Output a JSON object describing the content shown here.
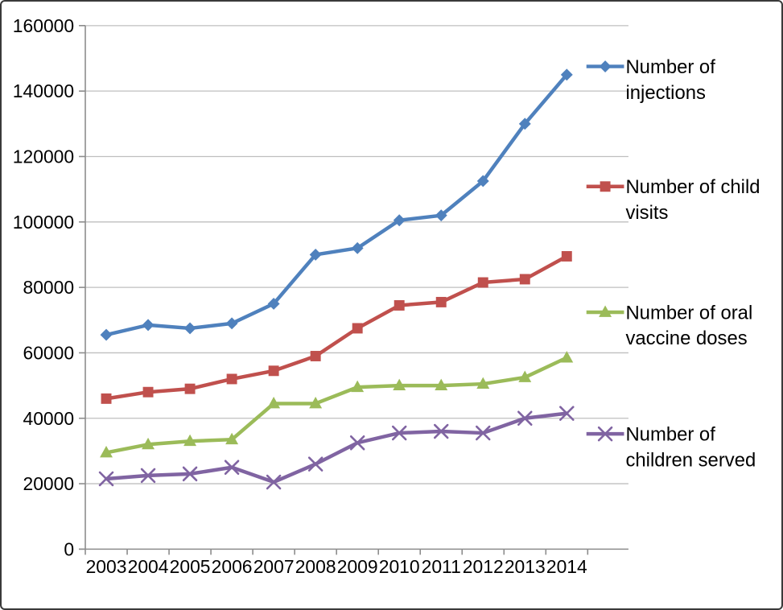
{
  "chart_data": {
    "type": "line",
    "title": "",
    "grid": "horizontal",
    "legend_position": "right",
    "x_categories": [
      "2003",
      "2004",
      "2005",
      "2006",
      "2007",
      "2008",
      "2009",
      "2010",
      "2011",
      "2012",
      "2013",
      "2014"
    ],
    "y_ticks": [
      "0",
      "20000",
      "40000",
      "60000",
      "80000",
      "100000",
      "120000",
      "140000",
      "160000"
    ],
    "ylim": [
      0,
      160000
    ],
    "ytick_step": 20000,
    "series": [
      {
        "name": "Number of injections",
        "legend_lines": [
          "Number of",
          "injections"
        ],
        "marker": "diamond",
        "color": "#4F81BD",
        "values": [
          65500,
          68500,
          67500,
          69000,
          75000,
          90000,
          92000,
          100500,
          102000,
          112500,
          130000,
          145000
        ]
      },
      {
        "name": "Number of child visits",
        "legend_lines": [
          "Number of child",
          "visits"
        ],
        "marker": "square",
        "color": "#C0504D",
        "values": [
          46000,
          48000,
          49000,
          52000,
          54500,
          59000,
          67500,
          74500,
          75500,
          81500,
          82500,
          89500
        ]
      },
      {
        "name": "Number of oral vaccine doses",
        "legend_lines": [
          "Number of oral",
          "vaccine doses"
        ],
        "marker": "triangle",
        "color": "#9BBB59",
        "values": [
          29500,
          32000,
          33000,
          33500,
          44500,
          44500,
          49500,
          50000,
          50000,
          50500,
          52500,
          58500
        ]
      },
      {
        "name": "Number of children served",
        "legend_lines": [
          "Number of",
          "children served"
        ],
        "marker": "x",
        "color": "#8064A2",
        "values": [
          21500,
          22500,
          23000,
          25000,
          20500,
          26000,
          32500,
          35500,
          36000,
          35500,
          40000,
          41500
        ]
      }
    ],
    "style_colors": {
      "gridline": "#BFBFBF",
      "axis_line": "#8C8C8C",
      "tick_text": "#000000",
      "background": "#FFFFFF"
    }
  }
}
